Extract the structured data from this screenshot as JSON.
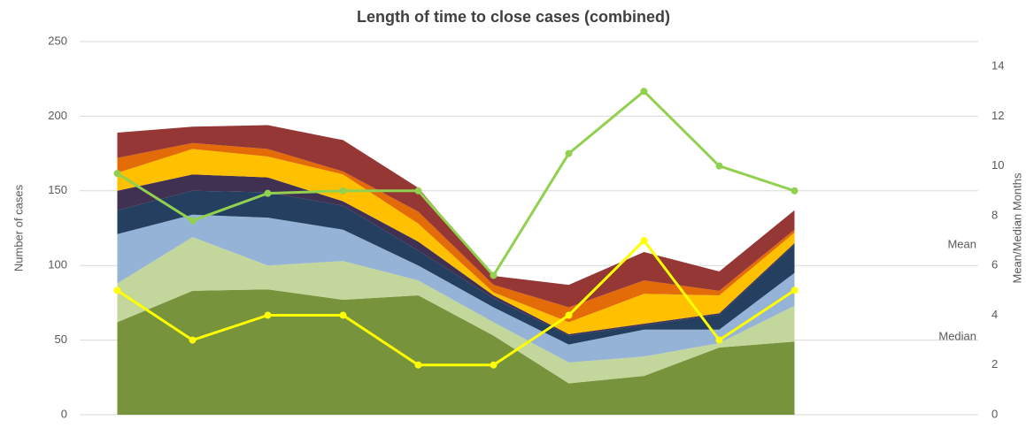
{
  "chart_data": {
    "type": "stacked_area",
    "title": "Length of time to close cases (combined)",
    "y_label": "Number of cases",
    "y2_label": "Mean/Median Months",
    "categories": [
      null,
      null,
      null,
      null,
      null,
      null,
      null,
      null,
      null,
      null,
      null,
      null
    ],
    "ylim": [
      0,
      250
    ],
    "yticks": [
      0,
      50,
      100,
      150,
      200,
      250
    ],
    "y2lim": [
      0,
      15
    ],
    "y2ticks": [
      0,
      2,
      4,
      6,
      8,
      10,
      12,
      14
    ],
    "grid": true,
    "series": [
      {
        "color": "#77933c",
        "values": [
          62,
          83,
          84,
          77,
          80,
          53,
          21,
          26,
          45,
          49,
          null,
          null
        ]
      },
      {
        "color": "#c3d69b",
        "values": [
          26,
          36,
          16,
          26,
          10,
          9,
          14,
          13,
          3,
          24,
          null,
          null
        ]
      },
      {
        "color": "#95b3d7",
        "values": [
          33,
          15,
          32,
          21,
          10,
          10,
          12,
          18,
          9,
          22,
          null,
          null
        ]
      },
      {
        "color": "#243f60",
        "values": [
          16,
          16,
          17,
          16,
          10,
          6,
          6,
          3,
          10,
          19,
          null,
          null
        ]
      },
      {
        "color": "#403152",
        "values": [
          13,
          11,
          10,
          3,
          6,
          2,
          1,
          1,
          1,
          1,
          null,
          null
        ]
      },
      {
        "color": "#ffc000",
        "values": [
          12,
          17,
          14,
          18,
          12,
          2,
          8,
          20,
          12,
          7,
          null,
          null
        ]
      },
      {
        "color": "#e36c09",
        "values": [
          10,
          4,
          5,
          2,
          8,
          5,
          10,
          9,
          3,
          2,
          null,
          null
        ]
      },
      {
        "color": "#953735",
        "values": [
          17,
          11,
          16,
          21,
          16,
          6,
          15,
          19,
          13,
          13,
          null,
          null
        ]
      },
      {
        "name": "Mean",
        "color": "#92d050",
        "axis": "y2",
        "type": "line",
        "values": [
          9.7,
          7.8,
          8.9,
          9.0,
          9.0,
          5.6,
          10.5,
          13.0,
          10.0,
          9.0,
          null,
          null
        ]
      },
      {
        "name": "Median",
        "color": "#ffff00",
        "axis": "y2",
        "type": "line",
        "values": [
          5,
          3,
          4,
          4,
          2,
          2,
          4,
          7,
          3,
          5,
          null,
          null
        ]
      }
    ]
  }
}
